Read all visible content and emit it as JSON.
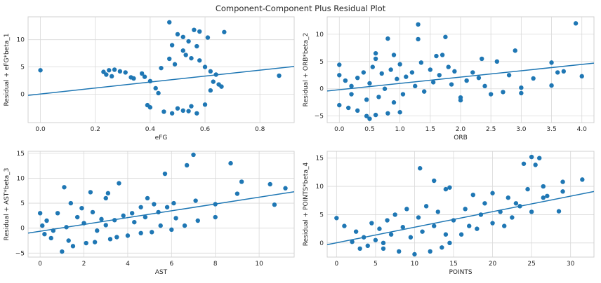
{
  "figure": {
    "title": "Component-Component Plus Residual Plot"
  },
  "chart_data": [
    {
      "type": "scatter",
      "xlabel": "eFG",
      "ylabel": "Residual + eFG*beta_1",
      "xlim": [
        -0.045,
        0.925
      ],
      "ylim": [
        -5.2,
        14.2
      ],
      "xticks": [
        0.0,
        0.2,
        0.4,
        0.6,
        0.8
      ],
      "xtick_labels": [
        "0.0",
        "0.2",
        "0.4",
        "0.6",
        "0.8"
      ],
      "yticks": [
        0,
        5,
        10
      ],
      "ytick_labels": [
        "0",
        "5",
        "10"
      ],
      "grid": true,
      "fit_line": {
        "x": [
          -0.045,
          0.925
        ],
        "y": [
          -0.2,
          5.1
        ]
      },
      "points": [
        [
          0.0,
          4.4
        ],
        [
          0.87,
          3.4
        ],
        [
          0.23,
          4.1
        ],
        [
          0.25,
          4.4
        ],
        [
          0.27,
          4.5
        ],
        [
          0.24,
          3.6
        ],
        [
          0.26,
          3.3
        ],
        [
          0.29,
          4.2
        ],
        [
          0.31,
          4.0
        ],
        [
          0.33,
          3.1
        ],
        [
          0.34,
          2.9
        ],
        [
          0.37,
          3.8
        ],
        [
          0.38,
          3.2
        ],
        [
          0.4,
          2.4
        ],
        [
          0.39,
          -2.0
        ],
        [
          0.4,
          -2.4
        ],
        [
          0.47,
          13.2
        ],
        [
          0.5,
          11.0
        ],
        [
          0.52,
          10.5
        ],
        [
          0.56,
          11.8
        ],
        [
          0.58,
          11.5
        ],
        [
          0.61,
          10.4
        ],
        [
          0.67,
          11.4
        ],
        [
          0.54,
          9.7
        ],
        [
          0.48,
          9.0
        ],
        [
          0.57,
          8.8
        ],
        [
          0.45,
          -3.2
        ],
        [
          0.48,
          -3.5
        ],
        [
          0.52,
          -3.0
        ],
        [
          0.54,
          -3.1
        ],
        [
          0.57,
          -3.5
        ],
        [
          0.5,
          -2.6
        ],
        [
          0.6,
          -1.9
        ],
        [
          0.55,
          -2.2
        ],
        [
          0.63,
          2.3
        ],
        [
          0.65,
          1.8
        ],
        [
          0.66,
          1.4
        ],
        [
          0.62,
          0.7
        ],
        [
          0.44,
          4.8
        ],
        [
          0.47,
          6.5
        ],
        [
          0.53,
          7.2
        ],
        [
          0.55,
          6.6
        ],
        [
          0.58,
          6.2
        ],
        [
          0.52,
          8.0
        ],
        [
          0.49,
          5.5
        ],
        [
          0.6,
          5.0
        ],
        [
          0.62,
          4.2
        ],
        [
          0.64,
          3.6
        ],
        [
          0.42,
          1.1
        ],
        [
          0.43,
          0.2
        ]
      ]
    },
    {
      "type": "scatter",
      "xlabel": "ORB",
      "ylabel": "Residual + ORB*beta_2",
      "xlim": [
        -0.2,
        4.2
      ],
      "ylim": [
        -6.2,
        13.2
      ],
      "xticks": [
        0.0,
        0.5,
        1.0,
        1.5,
        2.0,
        2.5,
        3.0,
        3.5,
        4.0
      ],
      "xtick_labels": [
        "0.0",
        "0.5",
        "1.0",
        "1.5",
        "2.0",
        "2.5",
        "3.0",
        "3.5",
        "4.0"
      ],
      "yticks": [
        -5,
        0,
        5,
        10
      ],
      "ytick_labels": [
        "−5",
        "0",
        "5",
        "10"
      ],
      "grid": true,
      "fit_line": {
        "x": [
          -0.2,
          4.2
        ],
        "y": [
          -0.4,
          4.7
        ]
      },
      "points": [
        [
          3.9,
          12.0
        ],
        [
          1.3,
          11.8
        ],
        [
          0.8,
          9.2
        ],
        [
          1.3,
          9.1
        ],
        [
          1.75,
          9.5
        ],
        [
          0.6,
          6.5
        ],
        [
          0.6,
          5.5
        ],
        [
          2.9,
          7.0
        ],
        [
          0.9,
          6.2
        ],
        [
          1.6,
          6.0
        ],
        [
          1.7,
          6.2
        ],
        [
          2.6,
          5.0
        ],
        [
          2.35,
          5.5
        ],
        [
          3.5,
          4.8
        ],
        [
          3.6,
          3.0
        ],
        [
          3.7,
          3.2
        ],
        [
          4.0,
          2.3
        ],
        [
          3.2,
          1.9
        ],
        [
          3.5,
          0.6
        ],
        [
          3.0,
          0.2
        ],
        [
          3.0,
          -0.8
        ],
        [
          2.7,
          -0.6
        ],
        [
          2.5,
          -1.0
        ],
        [
          2.0,
          -1.6
        ],
        [
          2.0,
          -2.1
        ],
        [
          0.5,
          -5.5
        ],
        [
          0.45,
          -5.0
        ],
        [
          0.6,
          -4.8
        ],
        [
          0.8,
          -4.5
        ],
        [
          1.0,
          -4.3
        ],
        [
          0.3,
          -4.0
        ],
        [
          0.15,
          -3.5
        ],
        [
          0.0,
          -3.0
        ],
        [
          0.0,
          4.4
        ],
        [
          0.0,
          2.5
        ],
        [
          0.1,
          1.5
        ],
        [
          0.2,
          0.5
        ],
        [
          0.2,
          -1.0
        ],
        [
          0.3,
          2.0
        ],
        [
          0.4,
          3.0
        ],
        [
          0.45,
          -2.0
        ],
        [
          0.5,
          1.0
        ],
        [
          0.55,
          4.0
        ],
        [
          0.65,
          -1.5
        ],
        [
          0.7,
          2.8
        ],
        [
          0.75,
          0.0
        ],
        [
          0.85,
          3.5
        ],
        [
          0.9,
          -2.5
        ],
        [
          0.95,
          1.8
        ],
        [
          1.0,
          4.5
        ],
        [
          1.05,
          -1.0
        ],
        [
          1.1,
          2.2
        ],
        [
          1.2,
          3.0
        ],
        [
          1.25,
          0.5
        ],
        [
          1.35,
          4.8
        ],
        [
          1.4,
          -0.5
        ],
        [
          1.5,
          3.5
        ],
        [
          1.55,
          1.2
        ],
        [
          1.65,
          2.5
        ],
        [
          1.8,
          4.0
        ],
        [
          1.85,
          0.8
        ],
        [
          1.9,
          3.2
        ],
        [
          2.1,
          1.5
        ],
        [
          2.2,
          3.0
        ],
        [
          2.3,
          2.0
        ],
        [
          2.4,
          0.5
        ],
        [
          2.8,
          2.5
        ]
      ]
    },
    {
      "type": "scatter",
      "xlabel": "AST",
      "ylabel": "Residual + AST*beta_3",
      "xlim": [
        -0.55,
        11.6
      ],
      "ylim": [
        -5.8,
        15.4
      ],
      "xticks": [
        0,
        2,
        4,
        6,
        8,
        10
      ],
      "xtick_labels": [
        "0",
        "2",
        "4",
        "6",
        "8",
        "10"
      ],
      "yticks": [
        -5,
        0,
        5,
        10,
        15
      ],
      "ytick_labels": [
        "−5",
        "0",
        "5",
        "10",
        "15"
      ],
      "grid": true,
      "fit_line": {
        "x": [
          -0.55,
          11.6
        ],
        "y": [
          -1.0,
          7.3
        ]
      },
      "points": [
        [
          7.0,
          14.7
        ],
        [
          6.7,
          12.6
        ],
        [
          8.7,
          13.0
        ],
        [
          5.7,
          10.9
        ],
        [
          9.2,
          9.3
        ],
        [
          10.5,
          8.8
        ],
        [
          11.2,
          8.0
        ],
        [
          9.0,
          6.9
        ],
        [
          10.7,
          4.7
        ],
        [
          7.1,
          5.5
        ],
        [
          8.0,
          4.8
        ],
        [
          6.1,
          5.0
        ],
        [
          5.8,
          4.2
        ],
        [
          5.2,
          4.8
        ],
        [
          4.9,
          6.0
        ],
        [
          4.6,
          4.2
        ],
        [
          3.6,
          9.0
        ],
        [
          3.1,
          7.0
        ],
        [
          1.1,
          8.2
        ],
        [
          2.3,
          7.2
        ],
        [
          3.0,
          6.0
        ],
        [
          1.0,
          -4.7
        ],
        [
          1.5,
          -3.6
        ],
        [
          2.1,
          -3.0
        ],
        [
          1.3,
          -2.5
        ],
        [
          0.5,
          -2.0
        ],
        [
          0.2,
          -1.2
        ],
        [
          2.5,
          -2.8
        ],
        [
          3.2,
          -2.2
        ],
        [
          3.5,
          -1.8
        ],
        [
          4.0,
          -1.5
        ],
        [
          4.6,
          -1.0
        ],
        [
          5.1,
          -0.8
        ],
        [
          5.5,
          0.5
        ],
        [
          6.0,
          -0.3
        ],
        [
          6.6,
          0.5
        ],
        [
          7.2,
          1.5
        ],
        [
          8.0,
          2.2
        ],
        [
          4.3,
          1.2
        ],
        [
          3.8,
          2.5
        ],
        [
          2.8,
          1.8
        ],
        [
          2.4,
          3.2
        ],
        [
          1.9,
          4.0
        ],
        [
          1.4,
          5.0
        ],
        [
          0.8,
          3.0
        ],
        [
          0.3,
          1.5
        ],
        [
          0.1,
          0.5
        ],
        [
          0.6,
          -0.5
        ],
        [
          1.2,
          0.2
        ],
        [
          1.7,
          2.2
        ],
        [
          2.0,
          1.0
        ],
        [
          2.6,
          -0.5
        ],
        [
          3.0,
          0.6
        ],
        [
          3.4,
          1.6
        ],
        [
          4.2,
          3.0
        ],
        [
          4.8,
          2.2
        ],
        [
          5.4,
          3.2
        ],
        [
          6.2,
          2.0
        ],
        [
          0.0,
          3.0
        ]
      ]
    },
    {
      "type": "scatter",
      "xlabel": "POINTS",
      "ylabel": "Residual + POINTS*beta_4",
      "xlim": [
        -1.2,
        33.0
      ],
      "ylim": [
        -2.5,
        16.2
      ],
      "xticks": [
        0,
        5,
        10,
        15,
        20,
        25,
        30
      ],
      "xtick_labels": [
        "0",
        "5",
        "10",
        "15",
        "20",
        "25",
        "30"
      ],
      "yticks": [
        0,
        5,
        10,
        15
      ],
      "ytick_labels": [
        "0",
        "5",
        "10",
        "15"
      ],
      "grid": true,
      "fit_line": {
        "x": [
          -1.2,
          33.0
        ],
        "y": [
          -0.3,
          9.1
        ]
      },
      "points": [
        [
          25.0,
          15.2
        ],
        [
          26.0,
          15.0
        ],
        [
          25.5,
          13.8
        ],
        [
          24.0,
          14.0
        ],
        [
          10.7,
          13.2
        ],
        [
          31.5,
          11.2
        ],
        [
          29.0,
          10.8
        ],
        [
          26.5,
          10.0
        ],
        [
          24.5,
          9.5
        ],
        [
          27.0,
          8.3
        ],
        [
          29.0,
          9.1
        ],
        [
          20.0,
          8.8
        ],
        [
          17.5,
          8.5
        ],
        [
          14.0,
          9.5
        ],
        [
          12.5,
          11.0
        ],
        [
          14.5,
          9.8
        ],
        [
          22.0,
          8.0
        ],
        [
          23.0,
          7.0
        ],
        [
          25.0,
          5.5
        ],
        [
          28.5,
          5.6
        ],
        [
          22.5,
          4.5
        ],
        [
          20.0,
          3.5
        ],
        [
          18.0,
          2.5
        ],
        [
          16.0,
          1.5
        ],
        [
          14.5,
          0.0
        ],
        [
          13.5,
          -0.8
        ],
        [
          12.0,
          -1.5
        ],
        [
          10.0,
          -2.0
        ],
        [
          8.0,
          -1.5
        ],
        [
          6.0,
          -1.0
        ],
        [
          4.0,
          -0.5
        ],
        [
          2.0,
          0.2
        ],
        [
          0.0,
          4.4
        ],
        [
          1.0,
          3.0
        ],
        [
          2.5,
          2.0
        ],
        [
          3.5,
          1.0
        ],
        [
          4.5,
          3.5
        ],
        [
          5.0,
          0.5
        ],
        [
          5.5,
          2.5
        ],
        [
          6.5,
          4.0
        ],
        [
          7.0,
          1.5
        ],
        [
          7.5,
          5.0
        ],
        [
          8.5,
          2.8
        ],
        [
          9.0,
          6.0
        ],
        [
          9.5,
          1.0
        ],
        [
          10.5,
          4.5
        ],
        [
          11.0,
          2.0
        ],
        [
          11.5,
          6.5
        ],
        [
          12.5,
          3.0
        ],
        [
          13.0,
          5.5
        ],
        [
          14.0,
          1.5
        ],
        [
          15.0,
          4.0
        ],
        [
          16.5,
          6.0
        ],
        [
          17.0,
          3.0
        ],
        [
          18.5,
          5.0
        ],
        [
          19.0,
          7.0
        ],
        [
          21.0,
          5.5
        ],
        [
          21.5,
          3.0
        ],
        [
          23.5,
          6.5
        ],
        [
          26.5,
          8.0
        ],
        [
          3.0,
          -1.0
        ],
        [
          6.0,
          0.0
        ]
      ]
    }
  ]
}
